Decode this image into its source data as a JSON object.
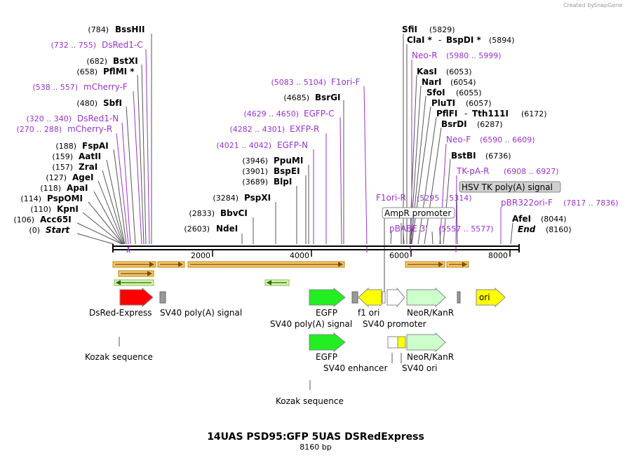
{
  "credit": {
    "prefix": "Created by",
    "brand": "SnapGene"
  },
  "title": "14UAS PSD95:GFP 5UAS DSRedExpress",
  "subtitle": "8160 bp",
  "axis_ticks": [
    "2000",
    "4000",
    "6000",
    "8000"
  ],
  "left_sites": [
    {
      "pos": "(784)",
      "name": "BssHII"
    },
    {
      "pos": "(732 .. 755)",
      "name": "DsRed1-C",
      "primer": true
    },
    {
      "pos": "(682)",
      "name": "BstXI"
    },
    {
      "pos": "(658)",
      "name": "PflMI *"
    },
    {
      "pos": "(538 .. 557)",
      "name": "mCherry-F",
      "primer": true
    },
    {
      "pos": "(480)",
      "name": "SbfI"
    },
    {
      "pos": "(320 .. 340)",
      "name": "DsRed1-N",
      "primer": true
    },
    {
      "pos": "(270 .. 288)",
      "name": "mCherry-R",
      "primer": true
    },
    {
      "pos": "(188)",
      "name": "FspAI"
    },
    {
      "pos": "(159)",
      "name": "AatII"
    },
    {
      "pos": "(157)",
      "name": "ZraI"
    },
    {
      "pos": "(127)",
      "name": "AgeI"
    },
    {
      "pos": "(118)",
      "name": "ApaI"
    },
    {
      "pos": "(114)",
      "name": "PspOMI"
    },
    {
      "pos": "(110)",
      "name": "KpnI"
    },
    {
      "pos": "(106)",
      "name": "Acc65I"
    },
    {
      "pos": "(0)",
      "name": "Start"
    }
  ],
  "middle_sites": [
    {
      "pos": "(5083 .. 5104)",
      "name": "F1ori-F",
      "primer": true
    },
    {
      "pos": "(4685)",
      "name": "BsrGI"
    },
    {
      "pos": "(4629 .. 4650)",
      "name": "EGFP-C",
      "primer": true
    },
    {
      "pos": "(4282 .. 4301)",
      "name": "EXFP-R",
      "primer": true
    },
    {
      "pos": "(4021 .. 4042)",
      "name": "EGFP-N",
      "primer": true
    },
    {
      "pos": "(3946)",
      "name": "PpuMI"
    },
    {
      "pos": "(3901)",
      "name": "BspEI"
    },
    {
      "pos": "(3689)",
      "name": "BlpI"
    },
    {
      "pos": "(3284)",
      "name": "PspXI"
    },
    {
      "pos": "(2833)",
      "name": "BbvCI"
    },
    {
      "pos": "(2603)",
      "name": "NdeI"
    }
  ],
  "right_sites": [
    {
      "name": "SfiI",
      "pos": "(5829)"
    },
    {
      "name": "ClaI *",
      "name2": "BspDI *",
      "pos": "(5894)"
    },
    {
      "name": "Neo-R",
      "pos": "(5980 .. 5999)",
      "primer": true
    },
    {
      "name": "KasI",
      "pos": "(6053)"
    },
    {
      "name": "NarI",
      "pos": "(6054)"
    },
    {
      "name": "SfoI",
      "pos": "(6055)"
    },
    {
      "name": "PluTI",
      "pos": "(6057)"
    },
    {
      "name": "PflFI",
      "name2": "Tth111I",
      "pos": "(6172)"
    },
    {
      "name": "BsrDI",
      "pos": "(6287)"
    },
    {
      "name": "Neo-F",
      "pos": "(6590 .. 6609)",
      "primer": true
    },
    {
      "name": "BstBI",
      "pos": "(6736)"
    },
    {
      "name": "TK-pA-R",
      "pos": "(6908 .. 6927)",
      "primer": true
    }
  ],
  "lower_right_labels": {
    "hsv": "HSV TK poly(A) signal",
    "f1ori_r": "F1ori-R",
    "f1ori_r_pos": "(5295 .. 5314)",
    "pbr322": "pBR322ori-F",
    "pbr322_pos": "(7817 .. 7836)",
    "ampr": "AmpR promoter",
    "pbabe": "pBABE 3'",
    "pbabe_pos": "(5557 .. 5577)",
    "afei": "AfeI",
    "afei_pos": "(8044)",
    "end": "End",
    "end_pos": "(8160)"
  },
  "features": {
    "dsred": "DsRed-Express",
    "sv40pa_1": "SV40 poly(A) signal",
    "egfp_1": "EGFP",
    "f1ori": "f1 ori",
    "neokan_1": "NeoR/KanR",
    "sv40pa_2": "SV40 poly(A) signal",
    "sv40prom": "SV40 promoter",
    "ori": "ori",
    "kozak_1": "Kozak sequence",
    "egfp_2": "EGFP",
    "sv40enh": "SV40 enhancer",
    "neokan_2": "NeoR/KanR",
    "sv40ori": "SV40 ori",
    "kozak_2": "Kozak sequence"
  },
  "colors": {
    "enzyme": "#000000",
    "primer": "#9933cc",
    "orf_fill": "#f5b041",
    "red_feature": "#ff0000",
    "green_feature": "#22ee22",
    "light_green": "#ccffcc",
    "yellow": "#ffff00",
    "gray": "#999999"
  }
}
